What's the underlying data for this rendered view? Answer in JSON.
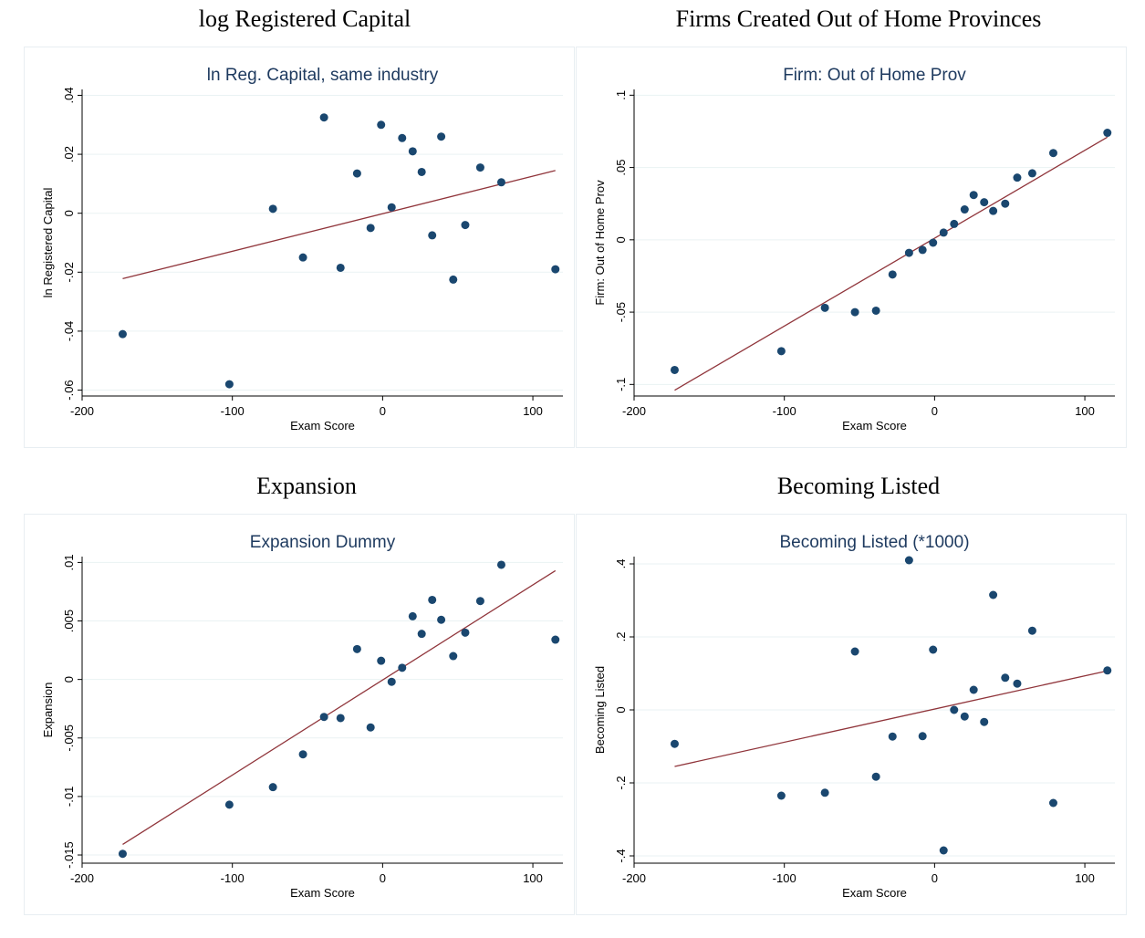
{
  "panels": [
    {
      "title": "log Registered Capital",
      "chart_data": {
        "type": "scatter",
        "title": "ln Reg. Capital, same industry",
        "xlabel": "Exam Score",
        "ylabel": "ln Registered Capital",
        "xlim": [
          -200,
          120
        ],
        "ylim": [
          -0.062,
          0.042
        ],
        "xticks": [
          -200,
          -100,
          0,
          100
        ],
        "xtick_labels": [
          "-200",
          "-100",
          "0",
          "100"
        ],
        "yticks": [
          -0.06,
          -0.04,
          -0.02,
          0,
          0.02,
          0.04
        ],
        "ytick_labels": [
          "-.06",
          "-.04",
          "-.02",
          "0",
          ".02",
          ".04"
        ],
        "points": [
          {
            "x": -173,
            "y": -0.041
          },
          {
            "x": -102,
            "y": -0.058
          },
          {
            "x": -73,
            "y": 0.0015
          },
          {
            "x": -53,
            "y": -0.015
          },
          {
            "x": -39,
            "y": 0.0325
          },
          {
            "x": -28,
            "y": -0.0185
          },
          {
            "x": -17,
            "y": 0.0135
          },
          {
            "x": -8,
            "y": -0.005
          },
          {
            "x": -1,
            "y": 0.03
          },
          {
            "x": 6,
            "y": 0.002
          },
          {
            "x": 13,
            "y": 0.0255
          },
          {
            "x": 20,
            "y": 0.021
          },
          {
            "x": 26,
            "y": 0.014
          },
          {
            "x": 33,
            "y": -0.0075
          },
          {
            "x": 39,
            "y": 0.026
          },
          {
            "x": 47,
            "y": -0.0225
          },
          {
            "x": 55,
            "y": -0.004
          },
          {
            "x": 65,
            "y": 0.0155
          },
          {
            "x": 79,
            "y": 0.0105
          },
          {
            "x": 115,
            "y": -0.019
          }
        ],
        "fit_line": {
          "x": [
            -173,
            115
          ],
          "y": [
            -0.0222,
            0.0145
          ]
        },
        "colors": {
          "point": "#1a476f",
          "line": "#90353b",
          "grid": "#eaf2f3",
          "title": "#1e3a5f"
        }
      }
    },
    {
      "title": "Firms Created Out of Home Provinces",
      "chart_data": {
        "type": "scatter",
        "title": "Firm: Out of Home Prov",
        "xlabel": "Exam Score",
        "ylabel": "Firm: Out of Home Prov",
        "xlim": [
          -200,
          120
        ],
        "ylim": [
          -0.108,
          0.104
        ],
        "xticks": [
          -200,
          -100,
          0,
          100
        ],
        "xtick_labels": [
          "-200",
          "-100",
          "0",
          "100"
        ],
        "yticks": [
          -0.1,
          -0.05,
          0,
          0.05,
          0.1
        ],
        "ytick_labels": [
          "-.1",
          "-.05",
          "0",
          ".05",
          ".1"
        ],
        "points": [
          {
            "x": -173,
            "y": -0.09
          },
          {
            "x": -102,
            "y": -0.077
          },
          {
            "x": -73,
            "y": -0.047
          },
          {
            "x": -53,
            "y": -0.05
          },
          {
            "x": -39,
            "y": -0.049
          },
          {
            "x": -28,
            "y": -0.024
          },
          {
            "x": -17,
            "y": -0.009
          },
          {
            "x": -8,
            "y": -0.007
          },
          {
            "x": -1,
            "y": -0.002
          },
          {
            "x": 6,
            "y": 0.005
          },
          {
            "x": 13,
            "y": 0.011
          },
          {
            "x": 20,
            "y": 0.021
          },
          {
            "x": 26,
            "y": 0.031
          },
          {
            "x": 33,
            "y": 0.026
          },
          {
            "x": 39,
            "y": 0.02
          },
          {
            "x": 47,
            "y": 0.025
          },
          {
            "x": 55,
            "y": 0.043
          },
          {
            "x": 65,
            "y": 0.046
          },
          {
            "x": 79,
            "y": 0.06
          },
          {
            "x": 115,
            "y": 0.074
          }
        ],
        "fit_line": {
          "x": [
            -173,
            115
          ],
          "y": [
            -0.104,
            0.071
          ]
        },
        "colors": {
          "point": "#1a476f",
          "line": "#90353b",
          "grid": "#eaf2f3",
          "title": "#1e3a5f"
        }
      }
    },
    {
      "title": "Expansion",
      "chart_data": {
        "type": "scatter",
        "title": "Expansion Dummy",
        "xlabel": "Exam Score",
        "ylabel": "Expansion",
        "xlim": [
          -200,
          120
        ],
        "ylim": [
          -0.0157,
          0.0105
        ],
        "xticks": [
          -200,
          -100,
          0,
          100
        ],
        "xtick_labels": [
          "-200",
          "-100",
          "0",
          "100"
        ],
        "yticks": [
          -0.015,
          -0.01,
          -0.005,
          0,
          0.005,
          0.01
        ],
        "ytick_labels": [
          "-.015",
          "-.01",
          "-.005",
          "0",
          ".005",
          ".01"
        ],
        "points": [
          {
            "x": -173,
            "y": -0.0149
          },
          {
            "x": -102,
            "y": -0.0107
          },
          {
            "x": -73,
            "y": -0.0092
          },
          {
            "x": -53,
            "y": -0.0064
          },
          {
            "x": -39,
            "y": -0.0032
          },
          {
            "x": -28,
            "y": -0.0033
          },
          {
            "x": -17,
            "y": 0.0026
          },
          {
            "x": -8,
            "y": -0.0041
          },
          {
            "x": -1,
            "y": 0.0016
          },
          {
            "x": 6,
            "y": -0.0002
          },
          {
            "x": 13,
            "y": 0.001
          },
          {
            "x": 20,
            "y": 0.0054
          },
          {
            "x": 26,
            "y": 0.0039
          },
          {
            "x": 33,
            "y": 0.0068
          },
          {
            "x": 39,
            "y": 0.0051
          },
          {
            "x": 47,
            "y": 0.002
          },
          {
            "x": 55,
            "y": 0.004
          },
          {
            "x": 65,
            "y": 0.0067
          },
          {
            "x": 79,
            "y": 0.0098
          },
          {
            "x": 115,
            "y": 0.0034
          }
        ],
        "fit_line": {
          "x": [
            -173,
            115
          ],
          "y": [
            -0.0141,
            0.0093
          ]
        },
        "colors": {
          "point": "#1a476f",
          "line": "#90353b",
          "grid": "#eaf2f3",
          "title": "#1e3a5f"
        }
      }
    },
    {
      "title": "Becoming Listed",
      "chart_data": {
        "type": "scatter",
        "title": "Becoming Listed (*1000)",
        "xlabel": "Exam Score",
        "ylabel": "Becoming Listed",
        "xlim": [
          -200,
          120
        ],
        "ylim": [
          -0.42,
          0.42
        ],
        "xticks": [
          -200,
          -100,
          0,
          100
        ],
        "xtick_labels": [
          "-200",
          "-100",
          "0",
          "100"
        ],
        "yticks": [
          -0.4,
          -0.2,
          0,
          0.2,
          0.4
        ],
        "ytick_labels": [
          "-.4",
          "-.2",
          "0",
          ".2",
          ".4"
        ],
        "points": [
          {
            "x": -173,
            "y": -0.093
          },
          {
            "x": -102,
            "y": -0.235
          },
          {
            "x": -73,
            "y": -0.227
          },
          {
            "x": -53,
            "y": 0.16
          },
          {
            "x": -39,
            "y": -0.183
          },
          {
            "x": -28,
            "y": -0.073
          },
          {
            "x": -17,
            "y": 0.41
          },
          {
            "x": -8,
            "y": -0.072
          },
          {
            "x": -1,
            "y": 0.165
          },
          {
            "x": 6,
            "y": -0.385
          },
          {
            "x": 13,
            "y": 0.0
          },
          {
            "x": 20,
            "y": -0.018
          },
          {
            "x": 26,
            "y": 0.055
          },
          {
            "x": 33,
            "y": -0.033
          },
          {
            "x": 39,
            "y": 0.315
          },
          {
            "x": 47,
            "y": 0.088
          },
          {
            "x": 55,
            "y": 0.072
          },
          {
            "x": 65,
            "y": 0.217
          },
          {
            "x": 79,
            "y": -0.255
          },
          {
            "x": 115,
            "y": 0.108
          }
        ],
        "fit_line": {
          "x": [
            -173,
            115
          ],
          "y": [
            -0.155,
            0.107
          ]
        },
        "colors": {
          "point": "#1a476f",
          "line": "#90353b",
          "grid": "#eaf2f3",
          "title": "#1e3a5f"
        }
      }
    }
  ]
}
